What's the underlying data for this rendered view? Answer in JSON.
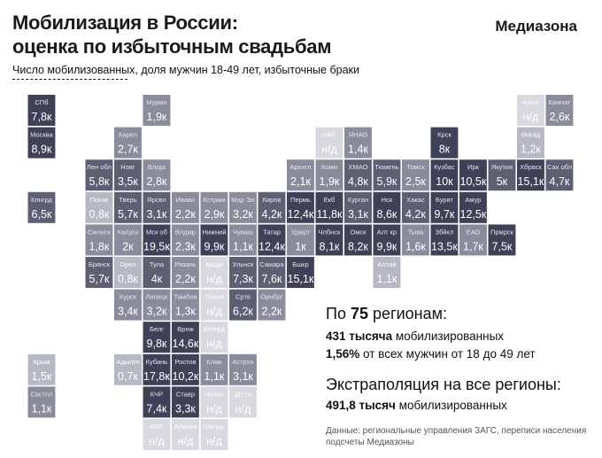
{
  "header": {
    "title_line1": "Мобилизация в России:",
    "title_line2": "оценка по избыточным свадьбам",
    "logo": "Медиазона",
    "subtitle": "Число мобилизованных, доля мужчин 18-49 лет, избыточные браки"
  },
  "colors": {
    "darkest": "#3f4257",
    "dark": "#5d6073",
    "mid": "#8a8c9c",
    "light": "#b6b8c4",
    "lightest": "#d8d9df"
  },
  "chart_data": {
    "type": "heatmap",
    "layout": "tile-grid-map",
    "unit_suffix": "к",
    "tiles": [
      {
        "name": "СПб",
        "value": "7,8к",
        "shade": "darkest",
        "col": 1,
        "row": 0
      },
      {
        "name": "Мурмн",
        "value": "1,9к",
        "shade": "mid",
        "col": 5,
        "row": 0
      },
      {
        "name": "Чукот",
        "value": "н/д",
        "shade": "lightest",
        "col": 18,
        "row": 0
      },
      {
        "name": "Камчат",
        "value": "2,6к",
        "shade": "mid",
        "col": 19,
        "row": 0
      },
      {
        "name": "Москва",
        "value": "8,9к",
        "shade": "darkest",
        "col": 1,
        "row": 1
      },
      {
        "name": "Карел",
        "value": "2,7к",
        "shade": "mid",
        "col": 4,
        "row": 1
      },
      {
        "name": "НАО",
        "value": "н/д",
        "shade": "lightest",
        "col": 11,
        "row": 1
      },
      {
        "name": "ЯНАО",
        "value": "1,4к",
        "shade": "mid",
        "col": 12,
        "row": 1
      },
      {
        "name": "Крск",
        "value": "8к",
        "shade": "darkest",
        "col": 15,
        "row": 1
      },
      {
        "name": "Магад",
        "value": "1,2к",
        "shade": "light",
        "col": 18,
        "row": 1
      },
      {
        "name": "Лен обл",
        "value": "5,8к",
        "shade": "dark",
        "col": 3,
        "row": 2
      },
      {
        "name": "Новг",
        "value": "3,5к",
        "shade": "dark",
        "col": 4,
        "row": 2
      },
      {
        "name": "Влгда",
        "value": "2,8к",
        "shade": "mid",
        "col": 5,
        "row": 2
      },
      {
        "name": "Архнгл",
        "value": "2,1к",
        "shade": "mid",
        "col": 10,
        "row": 2
      },
      {
        "name": "Коми",
        "value": "1,9к",
        "shade": "mid",
        "col": 11,
        "row": 2
      },
      {
        "name": "ХМАО",
        "value": "4,8к",
        "shade": "dark",
        "col": 12,
        "row": 2
      },
      {
        "name": "Тюмень",
        "value": "5,9к",
        "shade": "dark",
        "col": 13,
        "row": 2
      },
      {
        "name": "Томск",
        "value": "2,5к",
        "shade": "mid",
        "col": 14,
        "row": 2
      },
      {
        "name": "Кузбас",
        "value": "10к",
        "shade": "darkest",
        "col": 15,
        "row": 2
      },
      {
        "name": "Ирк",
        "value": "10,5к",
        "shade": "darkest",
        "col": 16,
        "row": 2
      },
      {
        "name": "Якутия",
        "value": "5к",
        "shade": "dark",
        "col": 17,
        "row": 2
      },
      {
        "name": "Хбрвск",
        "value": "15,1к",
        "shade": "darkest",
        "col": 18,
        "row": 2
      },
      {
        "name": "Сах обл",
        "value": "4,7к",
        "shade": "dark",
        "col": 19,
        "row": 2
      },
      {
        "name": "Клнгрд",
        "value": "6,5к",
        "shade": "dark",
        "col": 1,
        "row": 3
      },
      {
        "name": "Псков",
        "value": "0,8к",
        "shade": "light",
        "col": 3,
        "row": 3
      },
      {
        "name": "Тверь",
        "value": "5,7к",
        "shade": "dark",
        "col": 4,
        "row": 3
      },
      {
        "name": "Ярсвл",
        "value": "3,1к",
        "shade": "dark",
        "col": 5,
        "row": 3
      },
      {
        "name": "Иваво",
        "value": "2,2к",
        "shade": "mid",
        "col": 6,
        "row": 3
      },
      {
        "name": "Кстрма",
        "value": "2,9к",
        "shade": "mid",
        "col": 7,
        "row": 3
      },
      {
        "name": "Мар Эл",
        "value": "3,2к",
        "shade": "mid",
        "col": 8,
        "row": 3
      },
      {
        "name": "Киров",
        "value": "4,2к",
        "shade": "dark",
        "col": 9,
        "row": 3
      },
      {
        "name": "Пермь",
        "value": "12,4к",
        "shade": "darkest",
        "col": 10,
        "row": 3
      },
      {
        "name": "Екб",
        "value": "11,8к",
        "shade": "darkest",
        "col": 11,
        "row": 3
      },
      {
        "name": "Курган",
        "value": "3,1к",
        "shade": "dark",
        "col": 12,
        "row": 3
      },
      {
        "name": "Нск",
        "value": "8,6к",
        "shade": "darkest",
        "col": 13,
        "row": 3
      },
      {
        "name": "Хакас",
        "value": "4,2к",
        "shade": "dark",
        "col": 14,
        "row": 3
      },
      {
        "name": "Бурят",
        "value": "9,7к",
        "shade": "darkest",
        "col": 15,
        "row": 3
      },
      {
        "name": "Амур",
        "value": "12,5к",
        "shade": "darkest",
        "col": 16,
        "row": 3
      },
      {
        "name": "Смлнск",
        "value": "1,8к",
        "shade": "mid",
        "col": 3,
        "row": 4
      },
      {
        "name": "Калуга",
        "value": "2к",
        "shade": "mid",
        "col": 4,
        "row": 4
      },
      {
        "name": "Мск об",
        "value": "19,5к",
        "shade": "darkest",
        "col": 5,
        "row": 4
      },
      {
        "name": "Влдмр",
        "value": "2,3к",
        "shade": "mid",
        "col": 6,
        "row": 4
      },
      {
        "name": "Нижний",
        "value": "9,9к",
        "shade": "darkest",
        "col": 7,
        "row": 4
      },
      {
        "name": "Чуваш",
        "value": "1,1к",
        "shade": "mid",
        "col": 8,
        "row": 4
      },
      {
        "name": "Татар",
        "value": "12,4к",
        "shade": "darkest",
        "col": 9,
        "row": 4
      },
      {
        "name": "Удмрт",
        "value": "1к",
        "shade": "mid",
        "col": 10,
        "row": 4
      },
      {
        "name": "Члбнск",
        "value": "8,1к",
        "shade": "darkest",
        "col": 11,
        "row": 4
      },
      {
        "name": "Омск",
        "value": "8,2к",
        "shade": "darkest",
        "col": 12,
        "row": 4
      },
      {
        "name": "Алт кр",
        "value": "9,9к",
        "shade": "darkest",
        "col": 13,
        "row": 4
      },
      {
        "name": "Тыва",
        "value": "1,6к",
        "shade": "mid",
        "col": 14,
        "row": 4
      },
      {
        "name": "Збйкл",
        "value": "13,5к",
        "shade": "darkest",
        "col": 15,
        "row": 4
      },
      {
        "name": "ЕАО",
        "value": "1,7к",
        "shade": "mid",
        "col": 16,
        "row": 4
      },
      {
        "name": "Прмрск",
        "value": "7,5к",
        "shade": "darkest",
        "col": 17,
        "row": 4
      },
      {
        "name": "Брянск",
        "value": "5,7к",
        "shade": "dark",
        "col": 3,
        "row": 5
      },
      {
        "name": "Орел",
        "value": "0,8к",
        "shade": "light",
        "col": 4,
        "row": 5
      },
      {
        "name": "Тула",
        "value": "4к",
        "shade": "dark",
        "col": 5,
        "row": 5
      },
      {
        "name": "Рязань",
        "value": "2,2к",
        "shade": "mid",
        "col": 6,
        "row": 5
      },
      {
        "name": "Мрдв",
        "value": "н/д",
        "shade": "lightest",
        "col": 7,
        "row": 5
      },
      {
        "name": "Ульнск",
        "value": "7,3к",
        "shade": "dark",
        "col": 8,
        "row": 5
      },
      {
        "name": "Самара",
        "value": "7,6к",
        "shade": "dark",
        "col": 9,
        "row": 5
      },
      {
        "name": "Бшкр",
        "value": "15,1к",
        "shade": "darkest",
        "col": 10,
        "row": 5
      },
      {
        "name": "Алтай",
        "value": "1,1к",
        "shade": "light",
        "col": 13,
        "row": 5
      },
      {
        "name": "Курск",
        "value": "3,4к",
        "shade": "mid",
        "col": 4,
        "row": 6
      },
      {
        "name": "Липецк",
        "value": "3,2к",
        "shade": "mid",
        "col": 5,
        "row": 6
      },
      {
        "name": "Тамбов",
        "value": "1,3к",
        "shade": "mid",
        "col": 6,
        "row": 6
      },
      {
        "name": "Пенза",
        "value": "н/д",
        "shade": "lightest",
        "col": 7,
        "row": 6
      },
      {
        "name": "Сртв",
        "value": "6,2к",
        "shade": "dark",
        "col": 8,
        "row": 6
      },
      {
        "name": "Орнбрг",
        "value": "2,2к",
        "shade": "mid",
        "col": 9,
        "row": 6
      },
      {
        "name": "Белг",
        "value": "9,8к",
        "shade": "darkest",
        "col": 5,
        "row": 7
      },
      {
        "name": "Врнж",
        "value": "14,6к",
        "shade": "darkest",
        "col": 6,
        "row": 7
      },
      {
        "name": "Влгтрд",
        "value": "н/д",
        "shade": "lightest",
        "col": 7,
        "row": 7
      },
      {
        "name": "Крым",
        "value": "1,5к",
        "shade": "light",
        "col": 1,
        "row": 8
      },
      {
        "name": "Адыгея",
        "value": "0,7к",
        "shade": "light",
        "col": 4,
        "row": 8
      },
      {
        "name": "Кубань",
        "value": "17,8к",
        "shade": "darkest",
        "col": 5,
        "row": 8
      },
      {
        "name": "Ростов",
        "value": "10,2к",
        "shade": "darkest",
        "col": 6,
        "row": 8
      },
      {
        "name": "Клмк",
        "value": "1,1к",
        "shade": "mid",
        "col": 7,
        "row": 8
      },
      {
        "name": "Астрхн",
        "value": "3,1к",
        "shade": "mid",
        "col": 8,
        "row": 8
      },
      {
        "name": "Свстпл",
        "value": "1,1к",
        "shade": "mid",
        "col": 1,
        "row": 9
      },
      {
        "name": "КЧР",
        "value": "7,4к",
        "shade": "darkest",
        "col": 5,
        "row": 9
      },
      {
        "name": "Ставр",
        "value": "3,3к",
        "shade": "darkest",
        "col": 6,
        "row": 9
      },
      {
        "name": "Чечня",
        "value": "н/д",
        "shade": "lightest",
        "col": 7,
        "row": 9
      },
      {
        "name": "Дгстн",
        "value": "н/д",
        "shade": "lightest",
        "col": 8,
        "row": 9
      },
      {
        "name": "КБР",
        "value": "н/д",
        "shade": "lightest",
        "col": 5,
        "row": 10
      },
      {
        "name": "Алания",
        "value": "н/д",
        "shade": "lightest",
        "col": 6,
        "row": 10
      },
      {
        "name": "Ингуш",
        "value": "н/д",
        "shade": "lightest",
        "col": 7,
        "row": 10
      }
    ]
  },
  "summary": {
    "head_prefix": "По ",
    "head_number": "75",
    "head_suffix": " регионам:",
    "line1_bold": "431 тысяча",
    "line1_rest": " мобилизированных",
    "line2_bold": "1,56%",
    "line2_rest": " от всех мужчин от 18 до 49 лет",
    "head2": "Экстраполяция на все регионы:",
    "line3_bold": "491,8 тысяч",
    "line3_rest": " мобилизированных"
  },
  "source": {
    "line1": "Данные: региональные управления ЗАГС, переписи населения",
    "line2": "подсчеты Медиазоны"
  }
}
